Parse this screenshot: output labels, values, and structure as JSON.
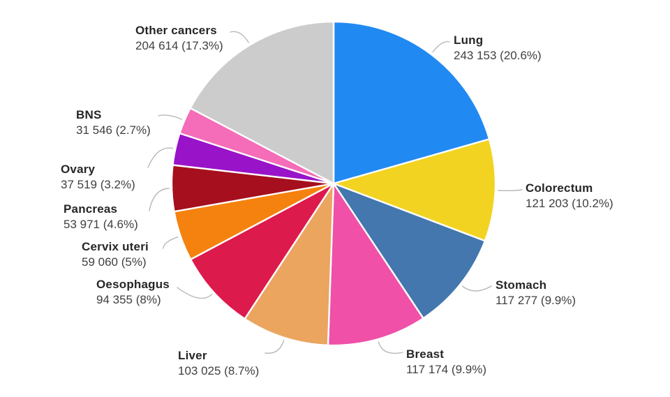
{
  "chart_data": {
    "type": "pie",
    "title": "",
    "legend_position": "outside-labels",
    "leader_line_color": "#b8b8b8",
    "slice_border_color": "#ffffff",
    "slices": [
      {
        "name": "Lung",
        "value": 243153,
        "pct": 20.6,
        "value_display": "243 153 (20.6%)",
        "color": "#2189f2"
      },
      {
        "name": "Colorectum",
        "value": 121203,
        "pct": 10.2,
        "value_display": "121 203 (10.2%)",
        "color": "#f2d321"
      },
      {
        "name": "Stomach",
        "value": 117277,
        "pct": 9.9,
        "value_display": "117 277 (9.9%)",
        "color": "#4377ae"
      },
      {
        "name": "Breast",
        "value": 117174,
        "pct": 9.9,
        "value_display": "117 174 (9.9%)",
        "color": "#f050a8"
      },
      {
        "name": "Liver",
        "value": 103025,
        "pct": 8.7,
        "value_display": "103 025 (8.7%)",
        "color": "#eba55f"
      },
      {
        "name": "Oesophagus",
        "value": 94355,
        "pct": 8,
        "value_display": "94 355 (8%)",
        "color": "#dc1a4c"
      },
      {
        "name": "Cervix uteri",
        "value": 59060,
        "pct": 5,
        "value_display": "59 060 (5%)",
        "color": "#f5820f"
      },
      {
        "name": "Pancreas",
        "value": 53971,
        "pct": 4.6,
        "value_display": "53 971 (4.6%)",
        "color": "#a50f1e"
      },
      {
        "name": "Ovary",
        "value": 37519,
        "pct": 3.2,
        "value_display": "37 519 (3.2%)",
        "color": "#9913c9"
      },
      {
        "name": "BNS",
        "value": 31546,
        "pct": 2.7,
        "value_display": "31 546 (2.7%)",
        "color": "#f56cb8"
      },
      {
        "name": "Other cancers",
        "value": 204614,
        "pct": 17.3,
        "value_display": "204 614 (17.3%)",
        "color": "#cccccc"
      }
    ]
  }
}
